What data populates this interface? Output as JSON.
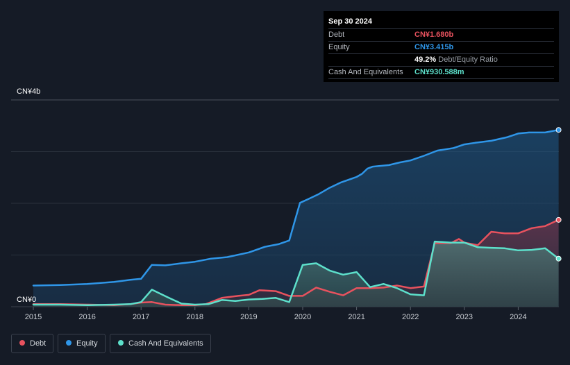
{
  "tooltip": {
    "date": "Sep 30 2024",
    "rows": [
      {
        "label": "Debt",
        "value": "CN¥1.680b",
        "color": "#e8525e"
      },
      {
        "label": "Equity",
        "value": "CN¥3.415b",
        "color": "#2f96e8"
      },
      {
        "label": "",
        "value": "49.2%",
        "extra": "Debt/Equity Ratio",
        "color": "#ffffff"
      },
      {
        "label": "Cash And Equivalents",
        "value": "CN¥930.588m",
        "color": "#5de0cb"
      }
    ]
  },
  "legend": [
    {
      "label": "Debt",
      "color": "#e8525e"
    },
    {
      "label": "Equity",
      "color": "#2f96e8"
    },
    {
      "label": "Cash And Equivalents",
      "color": "#5de0cb"
    }
  ],
  "chart_data": {
    "type": "area",
    "x_unit": "year",
    "xlim": [
      2014.8,
      2024.8
    ],
    "ylim": [
      0,
      4
    ],
    "y_unit": "CN¥ billions",
    "y_tick_labels": [
      {
        "value": 4,
        "label": "CN¥4b"
      },
      {
        "value": 0,
        "label": "CN¥0"
      }
    ],
    "x_ticks": [
      "2015",
      "2016",
      "2017",
      "2018",
      "2019",
      "2020",
      "2021",
      "2022",
      "2023",
      "2024"
    ],
    "series": [
      {
        "name": "Equity",
        "color": "#2f96e8",
        "points": [
          [
            2015.0,
            0.41
          ],
          [
            2015.5,
            0.42
          ],
          [
            2016.0,
            0.44
          ],
          [
            2016.5,
            0.48
          ],
          [
            2016.8,
            0.52
          ],
          [
            2017.0,
            0.54
          ],
          [
            2017.2,
            0.81
          ],
          [
            2017.45,
            0.8
          ],
          [
            2017.75,
            0.84
          ],
          [
            2018.0,
            0.87
          ],
          [
            2018.3,
            0.93
          ],
          [
            2018.6,
            0.96
          ],
          [
            2019.0,
            1.05
          ],
          [
            2019.3,
            1.16
          ],
          [
            2019.55,
            1.21
          ],
          [
            2019.75,
            1.28
          ],
          [
            2019.85,
            1.65
          ],
          [
            2019.95,
            2.01
          ],
          [
            2020.1,
            2.08
          ],
          [
            2020.3,
            2.18
          ],
          [
            2020.5,
            2.3
          ],
          [
            2020.7,
            2.4
          ],
          [
            2021.0,
            2.51
          ],
          [
            2021.1,
            2.57
          ],
          [
            2021.2,
            2.67
          ],
          [
            2021.3,
            2.71
          ],
          [
            2021.6,
            2.74
          ],
          [
            2021.8,
            2.79
          ],
          [
            2022.0,
            2.83
          ],
          [
            2022.25,
            2.92
          ],
          [
            2022.5,
            3.02
          ],
          [
            2022.8,
            3.07
          ],
          [
            2023.0,
            3.14
          ],
          [
            2023.2,
            3.17
          ],
          [
            2023.5,
            3.21
          ],
          [
            2023.8,
            3.28
          ],
          [
            2024.0,
            3.35
          ],
          [
            2024.2,
            3.37
          ],
          [
            2024.5,
            3.37
          ],
          [
            2024.75,
            3.42
          ]
        ]
      },
      {
        "name": "Debt",
        "color": "#e8525e",
        "points": [
          [
            2015.0,
            0.05
          ],
          [
            2015.5,
            0.05
          ],
          [
            2016.0,
            0.04
          ],
          [
            2016.5,
            0.03
          ],
          [
            2016.8,
            0.05
          ],
          [
            2017.0,
            0.08
          ],
          [
            2017.2,
            0.09
          ],
          [
            2017.45,
            0.04
          ],
          [
            2017.75,
            0.03
          ],
          [
            2018.0,
            0.03
          ],
          [
            2018.2,
            0.05
          ],
          [
            2018.5,
            0.17
          ],
          [
            2018.8,
            0.21
          ],
          [
            2019.0,
            0.23
          ],
          [
            2019.2,
            0.32
          ],
          [
            2019.5,
            0.3
          ],
          [
            2019.75,
            0.21
          ],
          [
            2020.0,
            0.21
          ],
          [
            2020.25,
            0.37
          ],
          [
            2020.5,
            0.29
          ],
          [
            2020.75,
            0.22
          ],
          [
            2021.0,
            0.36
          ],
          [
            2021.25,
            0.36
          ],
          [
            2021.5,
            0.37
          ],
          [
            2021.75,
            0.41
          ],
          [
            2022.0,
            0.36
          ],
          [
            2022.25,
            0.39
          ],
          [
            2022.45,
            1.23
          ],
          [
            2022.75,
            1.23
          ],
          [
            2022.9,
            1.31
          ],
          [
            2023.0,
            1.24
          ],
          [
            2023.25,
            1.19
          ],
          [
            2023.5,
            1.45
          ],
          [
            2023.75,
            1.42
          ],
          [
            2024.0,
            1.42
          ],
          [
            2024.25,
            1.52
          ],
          [
            2024.5,
            1.56
          ],
          [
            2024.75,
            1.68
          ]
        ]
      },
      {
        "name": "Cash And Equivalents",
        "color": "#5de0cb",
        "points": [
          [
            2015.0,
            0.04
          ],
          [
            2015.5,
            0.04
          ],
          [
            2016.0,
            0.03
          ],
          [
            2016.5,
            0.04
          ],
          [
            2016.8,
            0.05
          ],
          [
            2017.0,
            0.09
          ],
          [
            2017.2,
            0.33
          ],
          [
            2017.5,
            0.18
          ],
          [
            2017.75,
            0.06
          ],
          [
            2018.0,
            0.04
          ],
          [
            2018.25,
            0.05
          ],
          [
            2018.5,
            0.13
          ],
          [
            2018.75,
            0.11
          ],
          [
            2019.0,
            0.14
          ],
          [
            2019.25,
            0.15
          ],
          [
            2019.5,
            0.17
          ],
          [
            2019.75,
            0.09
          ],
          [
            2020.0,
            0.81
          ],
          [
            2020.25,
            0.84
          ],
          [
            2020.5,
            0.7
          ],
          [
            2020.75,
            0.62
          ],
          [
            2021.0,
            0.67
          ],
          [
            2021.25,
            0.38
          ],
          [
            2021.5,
            0.44
          ],
          [
            2021.75,
            0.36
          ],
          [
            2022.0,
            0.24
          ],
          [
            2022.25,
            0.22
          ],
          [
            2022.45,
            1.26
          ],
          [
            2022.75,
            1.24
          ],
          [
            2023.0,
            1.24
          ],
          [
            2023.25,
            1.15
          ],
          [
            2023.5,
            1.14
          ],
          [
            2023.75,
            1.13
          ],
          [
            2024.0,
            1.09
          ],
          [
            2024.25,
            1.1
          ],
          [
            2024.5,
            1.13
          ],
          [
            2024.75,
            0.93
          ]
        ]
      }
    ],
    "grid": true,
    "legend_position": "bottom-left"
  }
}
